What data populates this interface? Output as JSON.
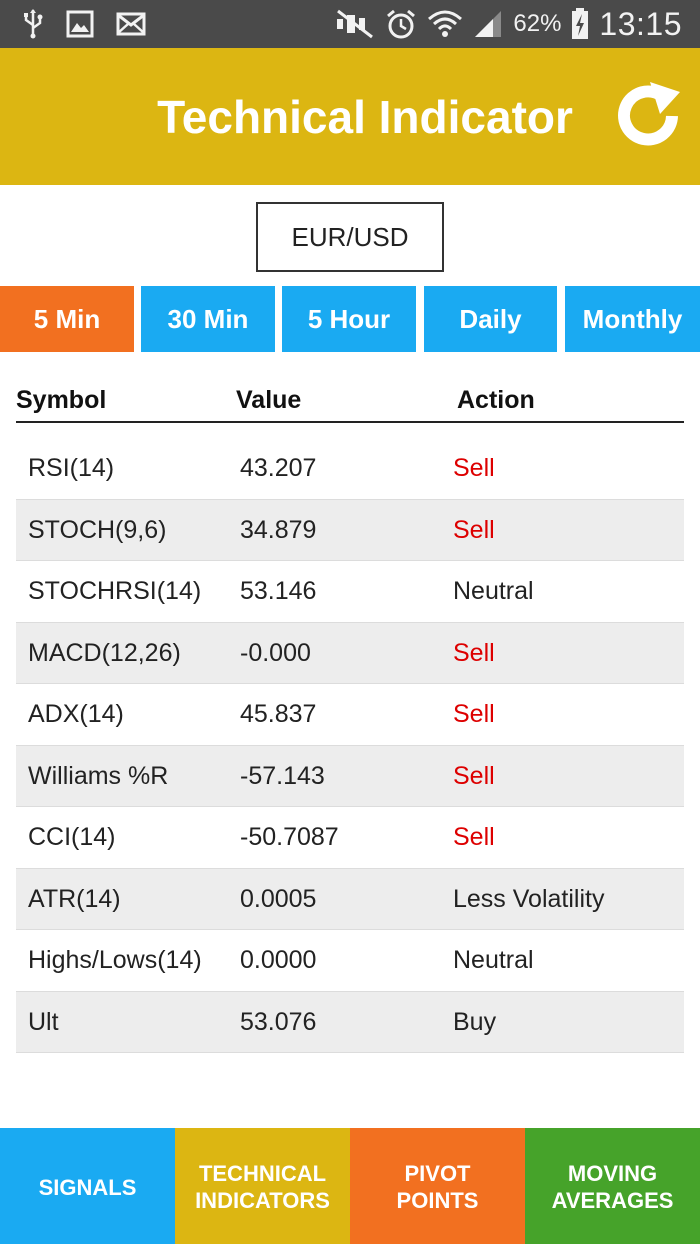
{
  "status_bar": {
    "battery": "62%",
    "time": "13:15",
    "left_icons": [
      "usb-icon",
      "image-icon",
      "mail-icon"
    ],
    "right_icons": [
      "mute-icon",
      "alarm-icon",
      "wifi-icon",
      "signal-icon",
      "battery-charging-icon"
    ]
  },
  "app_bar": {
    "title": "Technical Indicator",
    "refresh_icon": "refresh-icon",
    "color": "#dcb612"
  },
  "pair": {
    "value": "EUR/USD"
  },
  "timeframes": [
    {
      "label": "5 Min",
      "selected": true,
      "color": "#f27020"
    },
    {
      "label": "30 Min",
      "selected": false,
      "color": "#1aaaf2"
    },
    {
      "label": "5 Hour",
      "selected": false,
      "color": "#1aaaf2"
    },
    {
      "label": "Daily",
      "selected": false,
      "color": "#1aaaf2"
    },
    {
      "label": "Monthly",
      "selected": false,
      "color": "#1aaaf2"
    }
  ],
  "table": {
    "headers": {
      "symbol": "Symbol",
      "value": "Value",
      "action": "Action"
    },
    "rows": [
      {
        "symbol": "RSI(14)",
        "value": "43.207",
        "action": "Sell"
      },
      {
        "symbol": "STOCH(9,6)",
        "value": "34.879",
        "action": "Sell"
      },
      {
        "symbol": "STOCHRSI(14)",
        "value": "53.146",
        "action": "Neutral"
      },
      {
        "symbol": "MACD(12,26)",
        "value": "-0.000",
        "action": "Sell"
      },
      {
        "symbol": "ADX(14)",
        "value": "45.837",
        "action": "Sell"
      },
      {
        "symbol": "Williams %R",
        "value": "-57.143",
        "action": "Sell"
      },
      {
        "symbol": "CCI(14)",
        "value": "-50.7087",
        "action": "Sell"
      },
      {
        "symbol": "ATR(14)",
        "value": "0.0005",
        "action": "Less Volatility"
      },
      {
        "symbol": "Highs/Lows(14)",
        "value": "0.0000",
        "action": "Neutral"
      },
      {
        "symbol": "Ult",
        "value": "53.076",
        "action": "Buy"
      }
    ],
    "sell_color": "#dd0000"
  },
  "bottom_nav": [
    {
      "label": "SIGNALS",
      "color": "#1aaaf2"
    },
    {
      "label": "TECHNICAL\nINDICATORS",
      "color": "#dcb612"
    },
    {
      "label": "PIVOT\nPOINTS",
      "color": "#f27020"
    },
    {
      "label": "MOVING\nAVERAGES",
      "color": "#46a32a"
    }
  ]
}
